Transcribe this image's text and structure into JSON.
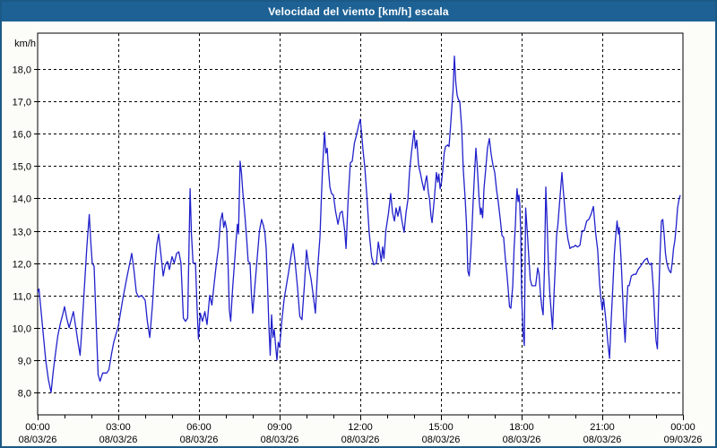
{
  "window": {
    "title": "Velocidad del viento [km/h] escala"
  },
  "colors": {
    "title_bar": "#1e6295",
    "frame_border": "#1b5a86",
    "background": "#fcfdf8",
    "line": "#2121cc",
    "grid": "#000000",
    "text": "#000000"
  },
  "chart_data": {
    "type": "line",
    "title": "Velocidad del viento [km/h] escala",
    "ylabel": "km/h",
    "xlabel": "",
    "grid": true,
    "legend": "none",
    "ylim": [
      8,
      18
    ],
    "x_hours_range": [
      0,
      24
    ],
    "y_ticks": [
      {
        "value": 18,
        "label": "18,0"
      },
      {
        "value": 17,
        "label": "17,0"
      },
      {
        "value": 16,
        "label": "16,0"
      },
      {
        "value": 15,
        "label": "15,0"
      },
      {
        "value": 14,
        "label": "14,0"
      },
      {
        "value": 13,
        "label": "13,0"
      },
      {
        "value": 12,
        "label": "12,0"
      },
      {
        "value": 11,
        "label": "11,0"
      },
      {
        "value": 10,
        "label": "10,0"
      },
      {
        "value": 9,
        "label": "9,0"
      },
      {
        "value": 8,
        "label": "8,0"
      }
    ],
    "x_ticks": [
      {
        "hour": 0,
        "label": "00:00",
        "date": "08/03/26"
      },
      {
        "hour": 3,
        "label": "03:00",
        "date": "08/03/26"
      },
      {
        "hour": 6,
        "label": "06:00",
        "date": "08/03/26"
      },
      {
        "hour": 9,
        "label": "09:00",
        "date": "08/03/26"
      },
      {
        "hour": 12,
        "label": "12:00",
        "date": "08/03/26"
      },
      {
        "hour": 15,
        "label": "15:00",
        "date": "08/03/26"
      },
      {
        "hour": 18,
        "label": "18:00",
        "date": "08/03/26"
      },
      {
        "hour": 21,
        "label": "21:00",
        "date": "08/03/26"
      },
      {
        "hour": 24,
        "label": "00:00",
        "date": "09/03/26"
      }
    ],
    "series_name": "Velocidad del viento",
    "points": [
      [
        0.0,
        11.1
      ],
      [
        0.05,
        11.2
      ],
      [
        0.13,
        10.5
      ],
      [
        0.22,
        9.7
      ],
      [
        0.3,
        9.0
      ],
      [
        0.4,
        8.4
      ],
      [
        0.5,
        8.0
      ],
      [
        0.58,
        8.65
      ],
      [
        0.67,
        9.25
      ],
      [
        0.75,
        9.75
      ],
      [
        0.85,
        10.15
      ],
      [
        0.93,
        10.4
      ],
      [
        1.0,
        10.65
      ],
      [
        1.08,
        10.3
      ],
      [
        1.17,
        10.0
      ],
      [
        1.25,
        10.25
      ],
      [
        1.33,
        10.5
      ],
      [
        1.42,
        10.0
      ],
      [
        1.5,
        9.55
      ],
      [
        1.58,
        9.15
      ],
      [
        1.67,
        10.3
      ],
      [
        1.75,
        11.4
      ],
      [
        1.83,
        12.5
      ],
      [
        1.92,
        13.5
      ],
      [
        1.98,
        12.6
      ],
      [
        2.03,
        12.0
      ],
      [
        2.1,
        11.9
      ],
      [
        2.17,
        10.3
      ],
      [
        2.25,
        8.55
      ],
      [
        2.32,
        8.35
      ],
      [
        2.42,
        8.6
      ],
      [
        2.57,
        8.6
      ],
      [
        2.65,
        8.7
      ],
      [
        2.75,
        9.2
      ],
      [
        2.83,
        9.55
      ],
      [
        3.0,
        10.05
      ],
      [
        3.17,
        10.9
      ],
      [
        3.33,
        11.6
      ],
      [
        3.5,
        12.3
      ],
      [
        3.58,
        11.8
      ],
      [
        3.67,
        11.1
      ],
      [
        3.75,
        10.95
      ],
      [
        3.87,
        11.0
      ],
      [
        4.0,
        10.85
      ],
      [
        4.08,
        10.2
      ],
      [
        4.17,
        9.7
      ],
      [
        4.27,
        10.7
      ],
      [
        4.35,
        11.8
      ],
      [
        4.43,
        12.55
      ],
      [
        4.5,
        12.9
      ],
      [
        4.58,
        12.3
      ],
      [
        4.67,
        11.6
      ],
      [
        4.75,
        11.95
      ],
      [
        4.83,
        12.05
      ],
      [
        4.9,
        11.8
      ],
      [
        5.0,
        12.2
      ],
      [
        5.08,
        12.0
      ],
      [
        5.17,
        12.3
      ],
      [
        5.25,
        12.35
      ],
      [
        5.33,
        12.0
      ],
      [
        5.42,
        10.3
      ],
      [
        5.5,
        10.2
      ],
      [
        5.58,
        10.3
      ],
      [
        5.67,
        14.3
      ],
      [
        5.72,
        12.9
      ],
      [
        5.78,
        12.0
      ],
      [
        5.87,
        12.0
      ],
      [
        5.93,
        10.6
      ],
      [
        5.98,
        9.65
      ],
      [
        6.05,
        10.45
      ],
      [
        6.13,
        10.2
      ],
      [
        6.22,
        10.5
      ],
      [
        6.3,
        10.1
      ],
      [
        6.4,
        11.0
      ],
      [
        6.48,
        10.7
      ],
      [
        6.57,
        11.4
      ],
      [
        6.65,
        12.0
      ],
      [
        6.73,
        12.5
      ],
      [
        6.8,
        13.3
      ],
      [
        6.87,
        13.55
      ],
      [
        6.92,
        13.1
      ],
      [
        6.97,
        13.3
      ],
      [
        7.03,
        13.05
      ],
      [
        7.08,
        12.0
      ],
      [
        7.13,
        10.55
      ],
      [
        7.18,
        10.2
      ],
      [
        7.25,
        11.2
      ],
      [
        7.33,
        12.1
      ],
      [
        7.38,
        12.7
      ],
      [
        7.43,
        13.2
      ],
      [
        7.47,
        12.9
      ],
      [
        7.53,
        15.15
      ],
      [
        7.58,
        14.8
      ],
      [
        7.63,
        14.2
      ],
      [
        7.7,
        13.55
      ],
      [
        7.77,
        12.8
      ],
      [
        7.83,
        12.05
      ],
      [
        7.9,
        12.0
      ],
      [
        7.95,
        11.05
      ],
      [
        8.0,
        10.45
      ],
      [
        8.08,
        11.3
      ],
      [
        8.17,
        12.2
      ],
      [
        8.25,
        13.0
      ],
      [
        8.33,
        13.35
      ],
      [
        8.4,
        13.15
      ],
      [
        8.45,
        12.95
      ],
      [
        8.5,
        12.45
      ],
      [
        8.55,
        11.35
      ],
      [
        8.6,
        10.05
      ],
      [
        8.65,
        9.15
      ],
      [
        8.7,
        10.4
      ],
      [
        8.75,
        9.7
      ],
      [
        8.8,
        9.95
      ],
      [
        8.85,
        9.45
      ],
      [
        8.9,
        9.0
      ],
      [
        8.95,
        9.55
      ],
      [
        9.0,
        9.4
      ],
      [
        9.08,
        10.2
      ],
      [
        9.17,
        10.9
      ],
      [
        9.25,
        11.3
      ],
      [
        9.33,
        11.7
      ],
      [
        9.42,
        12.2
      ],
      [
        9.5,
        12.6
      ],
      [
        9.58,
        12.0
      ],
      [
        9.67,
        11.2
      ],
      [
        9.75,
        10.35
      ],
      [
        9.83,
        10.25
      ],
      [
        9.92,
        11.3
      ],
      [
        10.0,
        12.4
      ],
      [
        10.08,
        11.9
      ],
      [
        10.17,
        11.5
      ],
      [
        10.25,
        11.0
      ],
      [
        10.33,
        10.45
      ],
      [
        10.42,
        11.9
      ],
      [
        10.5,
        12.8
      ],
      [
        10.55,
        13.95
      ],
      [
        10.6,
        15.0
      ],
      [
        10.67,
        16.05
      ],
      [
        10.72,
        15.4
      ],
      [
        10.77,
        15.55
      ],
      [
        10.82,
        14.85
      ],
      [
        10.87,
        14.35
      ],
      [
        10.93,
        14.15
      ],
      [
        11.0,
        14.1
      ],
      [
        11.08,
        13.6
      ],
      [
        11.17,
        13.2
      ],
      [
        11.25,
        13.55
      ],
      [
        11.33,
        13.6
      ],
      [
        11.42,
        13.0
      ],
      [
        11.47,
        12.45
      ],
      [
        11.55,
        14.0
      ],
      [
        11.63,
        15.1
      ],
      [
        11.7,
        15.15
      ],
      [
        11.78,
        15.7
      ],
      [
        11.87,
        16.0
      ],
      [
        11.95,
        16.3
      ],
      [
        12.0,
        16.45
      ],
      [
        12.05,
        16.0
      ],
      [
        12.1,
        15.5
      ],
      [
        12.17,
        14.95
      ],
      [
        12.25,
        14.0
      ],
      [
        12.33,
        12.95
      ],
      [
        12.42,
        12.2
      ],
      [
        12.5,
        11.95
      ],
      [
        12.6,
        12.0
      ],
      [
        12.67,
        12.65
      ],
      [
        12.72,
        12.4
      ],
      [
        12.78,
        12.05
      ],
      [
        12.83,
        12.5
      ],
      [
        12.88,
        12.15
      ],
      [
        12.95,
        13.0
      ],
      [
        13.05,
        13.55
      ],
      [
        13.13,
        14.15
      ],
      [
        13.2,
        13.55
      ],
      [
        13.27,
        13.3
      ],
      [
        13.33,
        13.7
      ],
      [
        13.4,
        13.45
      ],
      [
        13.47,
        13.75
      ],
      [
        13.55,
        13.3
      ],
      [
        13.63,
        12.95
      ],
      [
        13.7,
        13.55
      ],
      [
        13.77,
        13.95
      ],
      [
        13.83,
        14.8
      ],
      [
        13.9,
        15.4
      ],
      [
        14.0,
        16.1
      ],
      [
        14.05,
        15.55
      ],
      [
        14.1,
        15.8
      ],
      [
        14.17,
        15.0
      ],
      [
        14.23,
        14.8
      ],
      [
        14.3,
        14.5
      ],
      [
        14.37,
        14.25
      ],
      [
        14.43,
        14.55
      ],
      [
        14.47,
        14.7
      ],
      [
        14.53,
        14.2
      ],
      [
        14.58,
        13.95
      ],
      [
        14.63,
        13.45
      ],
      [
        14.67,
        13.25
      ],
      [
        14.75,
        13.95
      ],
      [
        14.83,
        14.8
      ],
      [
        14.88,
        14.5
      ],
      [
        14.92,
        14.75
      ],
      [
        14.97,
        14.3
      ],
      [
        15.02,
        14.5
      ],
      [
        15.07,
        14.9
      ],
      [
        15.12,
        15.4
      ],
      [
        15.17,
        15.6
      ],
      [
        15.25,
        15.65
      ],
      [
        15.3,
        15.6
      ],
      [
        15.35,
        16.15
      ],
      [
        15.4,
        16.75
      ],
      [
        15.45,
        17.35
      ],
      [
        15.5,
        18.4
      ],
      [
        15.55,
        17.6
      ],
      [
        15.6,
        17.2
      ],
      [
        15.65,
        17.05
      ],
      [
        15.7,
        17.0
      ],
      [
        15.77,
        16.2
      ],
      [
        15.83,
        14.9
      ],
      [
        15.9,
        14.0
      ],
      [
        15.95,
        13.2
      ],
      [
        16.0,
        11.75
      ],
      [
        16.05,
        11.6
      ],
      [
        16.1,
        12.2
      ],
      [
        16.15,
        13.0
      ],
      [
        16.2,
        13.95
      ],
      [
        16.25,
        14.8
      ],
      [
        16.3,
        15.55
      ],
      [
        16.35,
        15.0
      ],
      [
        16.42,
        13.95
      ],
      [
        16.47,
        13.5
      ],
      [
        16.5,
        13.7
      ],
      [
        16.55,
        13.4
      ],
      [
        16.6,
        14.3
      ],
      [
        16.67,
        14.95
      ],
      [
        16.73,
        15.55
      ],
      [
        16.8,
        15.85
      ],
      [
        16.87,
        15.35
      ],
      [
        16.93,
        15.05
      ],
      [
        17.0,
        14.8
      ],
      [
        17.07,
        14.25
      ],
      [
        17.13,
        13.9
      ],
      [
        17.2,
        13.4
      ],
      [
        17.27,
        12.85
      ],
      [
        17.33,
        12.8
      ],
      [
        17.4,
        12.1
      ],
      [
        17.45,
        11.7
      ],
      [
        17.5,
        11.2
      ],
      [
        17.55,
        10.65
      ],
      [
        17.6,
        10.6
      ],
      [
        17.67,
        11.3
      ],
      [
        17.72,
        12.45
      ],
      [
        17.77,
        13.2
      ],
      [
        17.8,
        13.9
      ],
      [
        17.83,
        14.3
      ],
      [
        17.87,
        13.9
      ],
      [
        17.9,
        14.1
      ],
      [
        17.93,
        13.85
      ],
      [
        17.97,
        12.9
      ],
      [
        18.0,
        11.0
      ],
      [
        18.05,
        9.9
      ],
      [
        18.1,
        9.45
      ],
      [
        18.15,
        13.7
      ],
      [
        18.22,
        12.85
      ],
      [
        18.27,
        12.15
      ],
      [
        18.32,
        11.5
      ],
      [
        18.38,
        11.3
      ],
      [
        18.45,
        11.3
      ],
      [
        18.52,
        11.3
      ],
      [
        18.6,
        11.85
      ],
      [
        18.65,
        11.65
      ],
      [
        18.7,
        11.05
      ],
      [
        18.75,
        10.65
      ],
      [
        18.8,
        10.4
      ],
      [
        18.85,
        11.85
      ],
      [
        18.9,
        14.35
      ],
      [
        18.95,
        13.2
      ],
      [
        19.0,
        11.85
      ],
      [
        19.05,
        11.05
      ],
      [
        19.1,
        10.5
      ],
      [
        19.15,
        9.95
      ],
      [
        19.2,
        10.95
      ],
      [
        19.25,
        11.85
      ],
      [
        19.3,
        12.85
      ],
      [
        19.35,
        13.2
      ],
      [
        19.42,
        13.95
      ],
      [
        19.5,
        14.8
      ],
      [
        19.55,
        14.25
      ],
      [
        19.6,
        13.75
      ],
      [
        19.65,
        13.2
      ],
      [
        19.72,
        12.75
      ],
      [
        19.8,
        12.45
      ],
      [
        19.87,
        12.5
      ],
      [
        19.93,
        12.5
      ],
      [
        20.0,
        12.55
      ],
      [
        20.08,
        12.5
      ],
      [
        20.17,
        12.55
      ],
      [
        20.25,
        13.0
      ],
      [
        20.33,
        13.0
      ],
      [
        20.42,
        13.3
      ],
      [
        20.5,
        13.35
      ],
      [
        20.58,
        13.5
      ],
      [
        20.67,
        13.75
      ],
      [
        20.75,
        12.95
      ],
      [
        20.83,
        12.4
      ],
      [
        20.9,
        11.35
      ],
      [
        20.95,
        10.9
      ],
      [
        21.0,
        10.55
      ],
      [
        21.05,
        10.9
      ],
      [
        21.1,
        10.5
      ],
      [
        21.15,
        10.1
      ],
      [
        21.2,
        9.6
      ],
      [
        21.27,
        9.05
      ],
      [
        21.33,
        10.2
      ],
      [
        21.4,
        11.4
      ],
      [
        21.45,
        12.3
      ],
      [
        21.5,
        12.85
      ],
      [
        21.55,
        13.3
      ],
      [
        21.6,
        12.9
      ],
      [
        21.63,
        13.1
      ],
      [
        21.7,
        12.1
      ],
      [
        21.75,
        11.15
      ],
      [
        21.8,
        10.2
      ],
      [
        21.85,
        9.55
      ],
      [
        21.9,
        10.55
      ],
      [
        21.95,
        11.3
      ],
      [
        22.0,
        11.3
      ],
      [
        22.08,
        11.6
      ],
      [
        22.17,
        11.65
      ],
      [
        22.25,
        11.65
      ],
      [
        22.33,
        11.8
      ],
      [
        22.42,
        11.9
      ],
      [
        22.5,
        12.0
      ],
      [
        22.58,
        12.1
      ],
      [
        22.67,
        12.15
      ],
      [
        22.72,
        12.0
      ],
      [
        22.78,
        11.95
      ],
      [
        22.83,
        12.0
      ],
      [
        22.9,
        11.2
      ],
      [
        22.95,
        10.3
      ],
      [
        23.0,
        9.6
      ],
      [
        23.05,
        9.35
      ],
      [
        23.1,
        11.0
      ],
      [
        23.15,
        12.3
      ],
      [
        23.2,
        13.3
      ],
      [
        23.25,
        13.35
      ],
      [
        23.3,
        12.9
      ],
      [
        23.35,
        12.3
      ],
      [
        23.4,
        12.0
      ],
      [
        23.45,
        11.85
      ],
      [
        23.5,
        11.75
      ],
      [
        23.55,
        11.7
      ],
      [
        23.6,
        12.0
      ],
      [
        23.65,
        12.45
      ],
      [
        23.7,
        12.7
      ],
      [
        23.75,
        13.15
      ],
      [
        23.8,
        13.7
      ],
      [
        23.85,
        13.95
      ],
      [
        23.9,
        14.1
      ]
    ]
  }
}
